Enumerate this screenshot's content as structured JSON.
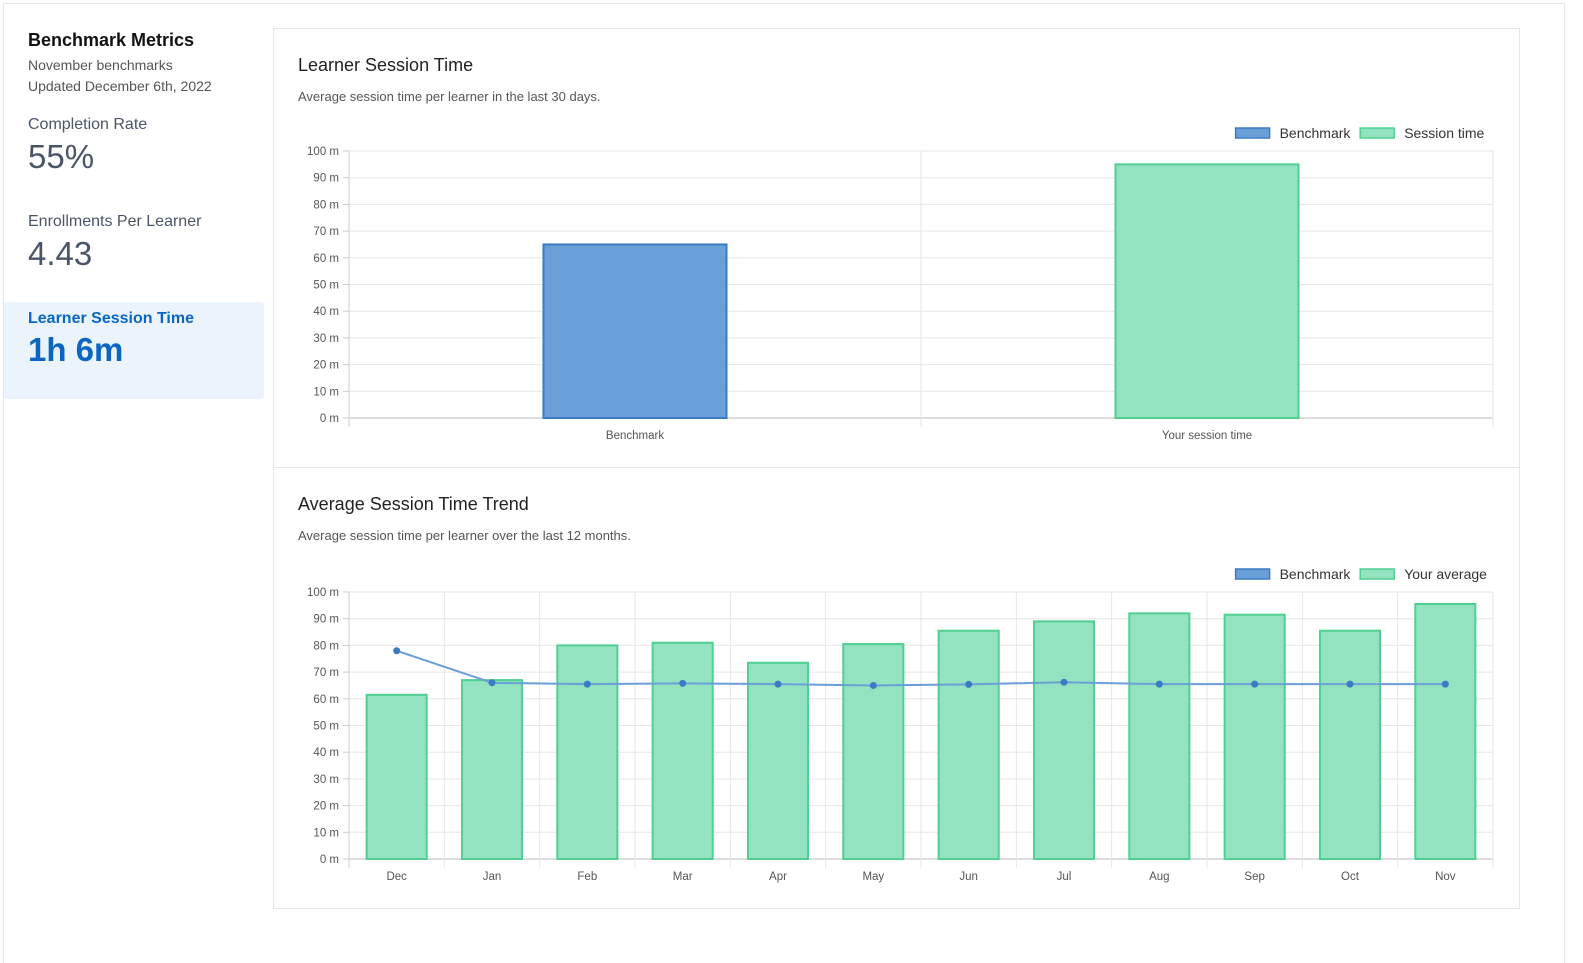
{
  "sidebar": {
    "title": "Benchmark Metrics",
    "subtitle": "November benchmarks",
    "updated": "Updated December 6th, 2022",
    "metrics": [
      {
        "label": "Completion Rate",
        "value": "55%"
      },
      {
        "label": "Enrollments Per Learner",
        "value": "4.43"
      },
      {
        "label": "Learner Session Time",
        "value": "1h 6m"
      }
    ]
  },
  "colors": {
    "benchmark_fill": "#6a9fd8",
    "benchmark_stroke": "#3a7cc4",
    "session_fill": "#93e2c0",
    "session_stroke": "#4fcf92",
    "active_bg": "#ebf4fd",
    "active_text": "#0a66c2"
  },
  "chart_data": [
    {
      "type": "bar",
      "title": "Learner Session Time",
      "subtitle": "Average session time per learner in the last 30 days.",
      "categories": [
        "Benchmark",
        "Your session time"
      ],
      "series": [
        {
          "name": "Benchmark",
          "values": [
            65,
            null
          ]
        },
        {
          "name": "Session time",
          "values": [
            null,
            95
          ]
        }
      ],
      "y_unit": "m",
      "ylim": [
        0,
        100
      ],
      "yticks": [
        0,
        10,
        20,
        30,
        40,
        50,
        60,
        70,
        80,
        90,
        100
      ],
      "grid": true,
      "legend": "top-right"
    },
    {
      "type": "bar",
      "title": "Average Session Time Trend",
      "subtitle": "Average session time per learner over the last 12 months.",
      "categories": [
        "Dec",
        "Jan",
        "Feb",
        "Mar",
        "Apr",
        "May",
        "Jun",
        "Jul",
        "Aug",
        "Sep",
        "Oct",
        "Nov"
      ],
      "series": [
        {
          "name": "Benchmark",
          "kind": "line",
          "values": [
            78,
            66,
            65.5,
            65.8,
            65.5,
            65,
            65.4,
            66.2,
            65.5,
            65.5,
            65.5,
            65.5
          ]
        },
        {
          "name": "Your average",
          "kind": "bar",
          "values": [
            61.5,
            67,
            80,
            81,
            73.5,
            80.5,
            85.5,
            89,
            92,
            91.5,
            85.5,
            95.5
          ]
        }
      ],
      "y_unit": "m",
      "ylim": [
        0,
        100
      ],
      "yticks": [
        0,
        10,
        20,
        30,
        40,
        50,
        60,
        70,
        80,
        90,
        100
      ],
      "grid": true,
      "legend": "top-right"
    }
  ]
}
